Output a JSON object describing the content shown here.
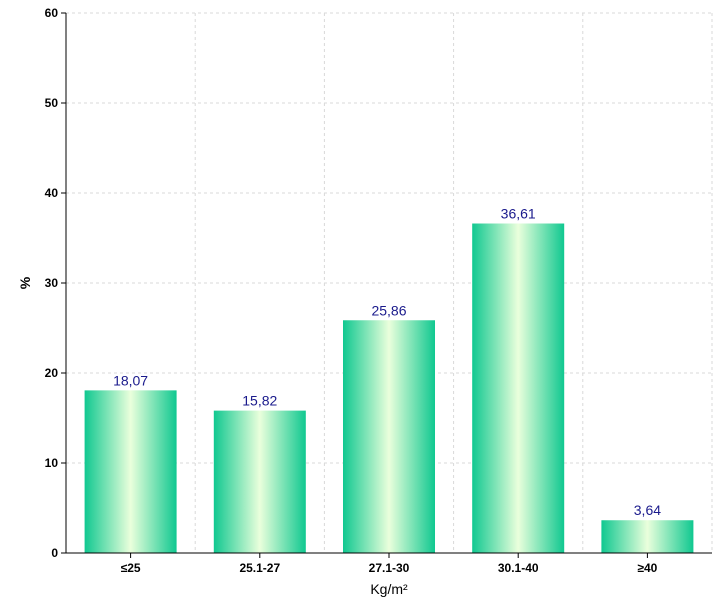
{
  "chart_data": {
    "type": "bar",
    "categories": [
      "≤25",
      "25.1-27",
      "27.1-30",
      "30.1-40",
      "≥40"
    ],
    "values": [
      18.07,
      15.82,
      25.86,
      36.61,
      3.64
    ],
    "value_labels": [
      "18,07",
      "15,82",
      "25,86",
      "36,61",
      "3,64"
    ],
    "title": "",
    "xlabel": "Kg/m²",
    "ylabel": "%",
    "ylim": [
      0,
      60
    ],
    "yticks": [
      0,
      10,
      20,
      30,
      40,
      50,
      60
    ],
    "grid": true,
    "legend": "none",
    "colors": {
      "bar_edge": "#10c890",
      "bar_center": "#e8ffd8",
      "grid": "#d9d9d9",
      "axis": "#000000",
      "data_label": "#1a1a8c"
    }
  }
}
